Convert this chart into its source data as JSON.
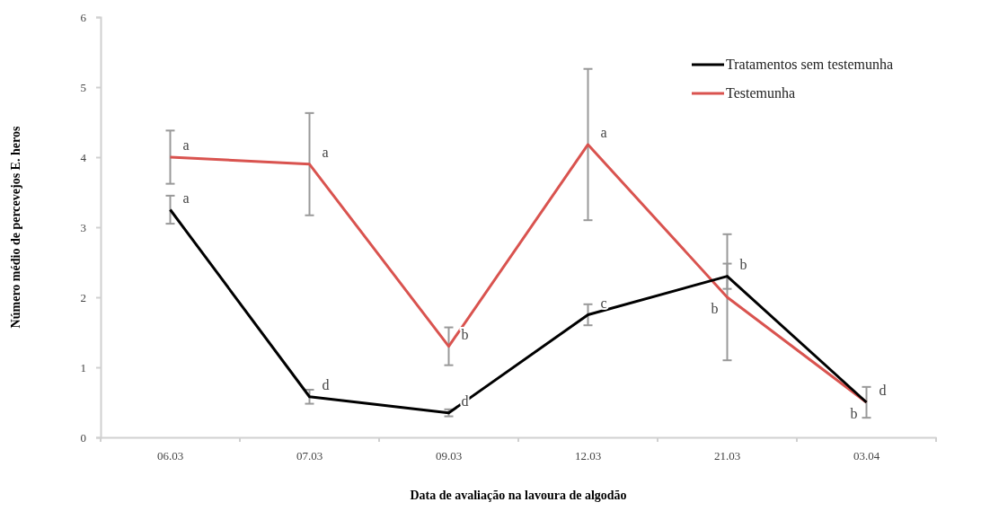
{
  "chart_data": {
    "type": "line",
    "xlabel": "Data de avaliação na lavoura de algodão",
    "ylabel": "Número médio de percevejos E. heros",
    "categories": [
      "06.03",
      "07.03",
      "09.03",
      "12.03",
      "21.03",
      "03.04"
    ],
    "series": [
      {
        "name": "Tratamentos sem testemunha",
        "color": "#000000",
        "values": [
          3.25,
          0.58,
          0.35,
          1.75,
          2.3,
          0.5
        ],
        "errors": [
          0.2,
          0.1,
          0.05,
          0.15,
          0.18,
          0.22
        ]
      },
      {
        "name": "Testemunha",
        "color": "#d9534f",
        "values": [
          4.0,
          3.9,
          1.3,
          4.18,
          2.0,
          0.5
        ],
        "errors": [
          0.38,
          0.73,
          0.27,
          1.08,
          0.9,
          null
        ]
      }
    ],
    "ylim": [
      0,
      6
    ],
    "yticks": [
      0,
      1,
      2,
      3,
      4,
      5,
      6
    ],
    "grid": false,
    "legend": "top right",
    "marker": "none",
    "line_style": "solid",
    "annotations": [
      {
        "text": "a",
        "x": "06.03",
        "y": 3.25
      },
      {
        "text": "d",
        "x": "07.03",
        "y": 0.58
      },
      {
        "text": "d",
        "x": "09.03",
        "y": 0.35
      },
      {
        "text": "c",
        "x": "12.03",
        "y": 1.75
      },
      {
        "text": "b",
        "x": "21.03",
        "y": 2.3
      },
      {
        "text": "d",
        "x": "03.04",
        "y": 0.5
      },
      {
        "text": "a",
        "x": "06.03",
        "y": 4.0
      },
      {
        "text": "a",
        "x": "07.03",
        "y": 3.9
      },
      {
        "text": "b",
        "x": "09.03",
        "y": 1.3
      },
      {
        "text": "a",
        "x": "12.03",
        "y": 4.18
      },
      {
        "text": "b",
        "x": "21.03",
        "y": 2.0
      },
      {
        "text": "b",
        "x": "03.04",
        "y": 0.5
      }
    ]
  }
}
